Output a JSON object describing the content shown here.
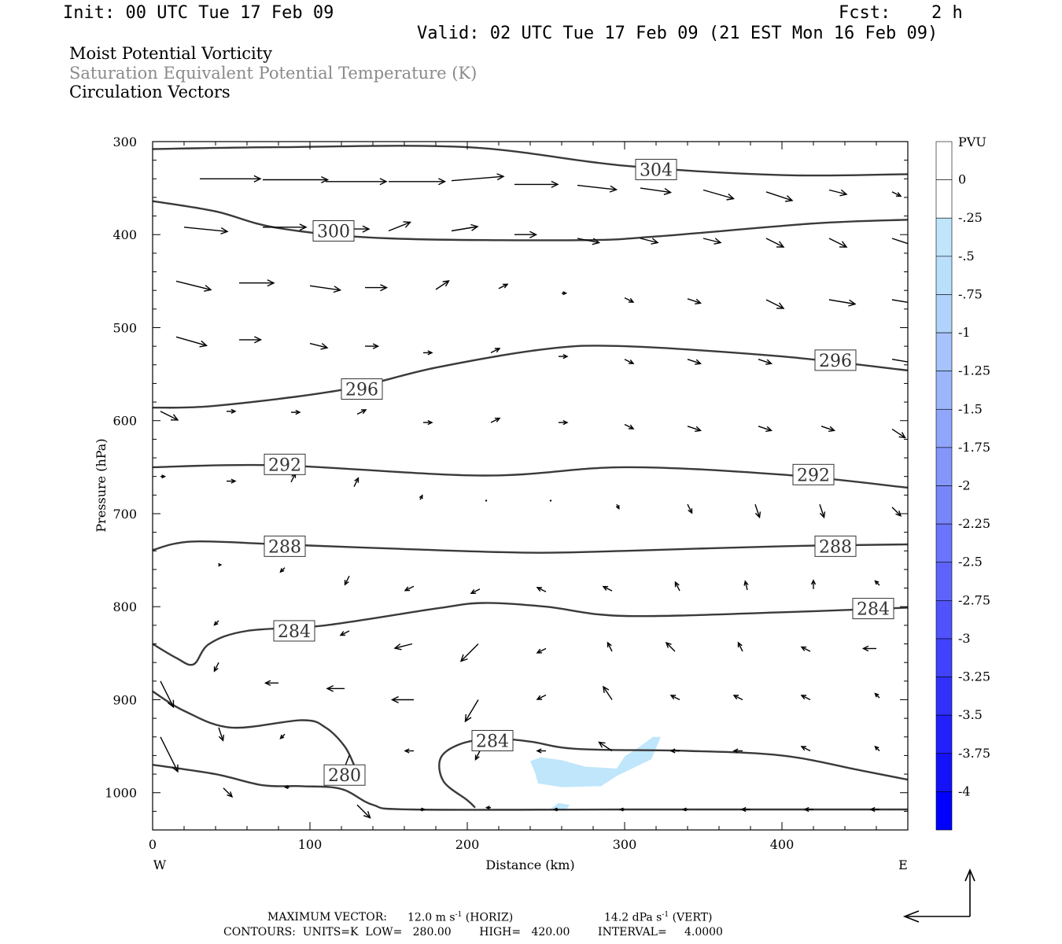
{
  "header": {
    "init": "Init: 00 UTC Tue 17 Feb 09",
    "fcst_label": "Fcst:",
    "fcst_value": "2 h",
    "valid": "Valid: 02 UTC Tue 17 Feb 09 (21 EST Mon 16 Feb 09)",
    "fields": [
      "Moist Potential Vorticity",
      "Saturation Equivalent Potential Temperature (K)",
      "Circulation Vectors"
    ]
  },
  "colors": {
    "contour": "#3a3a3a",
    "vector": "#000000",
    "pv_fill": "#bfe6fb"
  },
  "chart_data": {
    "type": "cross-section",
    "xlabel": "Distance (km)",
    "ylabel": "Pressure (hPa)",
    "xlim": [
      0,
      480
    ],
    "ylim": [
      1040,
      300
    ],
    "x_ticks": [
      0,
      100,
      200,
      300,
      400
    ],
    "y_ticks": [
      300,
      400,
      500,
      600,
      700,
      800,
      900,
      1000
    ],
    "left_end_label": "W",
    "right_end_label": "E",
    "contour_labels": [
      {
        "value": "304",
        "x": 320,
        "p": 330
      },
      {
        "value": "300",
        "x": 115,
        "p": 396
      },
      {
        "value": "296",
        "x": 133,
        "p": 566
      },
      {
        "value": "296",
        "x": 434,
        "p": 535
      },
      {
        "value": "292",
        "x": 84,
        "p": 647
      },
      {
        "value": "292",
        "x": 420,
        "p": 658
      },
      {
        "value": "288",
        "x": 84,
        "p": 735
      },
      {
        "value": "288",
        "x": 434,
        "p": 735
      },
      {
        "value": "284",
        "x": 90,
        "p": 826
      },
      {
        "value": "284",
        "x": 458,
        "p": 802
      },
      {
        "value": "284",
        "x": 216,
        "p": 944
      },
      {
        "value": "280",
        "x": 122,
        "p": 981
      }
    ],
    "contours": [
      {
        "value": 304,
        "points": [
          [
            0,
            308
          ],
          [
            80,
            306
          ],
          [
            200,
            306
          ],
          [
            300,
            326
          ],
          [
            400,
            336
          ],
          [
            480,
            335
          ]
        ]
      },
      {
        "value": 300,
        "points": [
          [
            0,
            364
          ],
          [
            40,
            375
          ],
          [
            80,
            393
          ],
          [
            150,
            404
          ],
          [
            270,
            406
          ],
          [
            320,
            402
          ],
          [
            420,
            388
          ],
          [
            480,
            384
          ]
        ]
      },
      {
        "value": 296,
        "points": [
          [
            0,
            586
          ],
          [
            40,
            584
          ],
          [
            120,
            567
          ],
          [
            180,
            543
          ],
          [
            250,
            523
          ],
          [
            300,
            520
          ],
          [
            400,
            531
          ],
          [
            480,
            546
          ]
        ]
      },
      {
        "value": 292,
        "points": [
          [
            0,
            650
          ],
          [
            80,
            648
          ],
          [
            210,
            659
          ],
          [
            300,
            650
          ],
          [
            400,
            658
          ],
          [
            480,
            672
          ]
        ]
      },
      {
        "value": 288,
        "points": [
          [
            0,
            739
          ],
          [
            25,
            730
          ],
          [
            80,
            733
          ],
          [
            160,
            738
          ],
          [
            240,
            742
          ],
          [
            300,
            740
          ],
          [
            400,
            735
          ],
          [
            480,
            733
          ]
        ]
      },
      {
        "value": 284,
        "points": [
          [
            0,
            840
          ],
          [
            15,
            855
          ],
          [
            26,
            862
          ],
          [
            36,
            840
          ],
          [
            60,
            826
          ],
          [
            110,
            820
          ],
          [
            180,
            802
          ],
          [
            210,
            796
          ],
          [
            250,
            800
          ],
          [
            300,
            810
          ],
          [
            400,
            806
          ],
          [
            480,
            801
          ]
        ]
      },
      {
        "value": 284,
        "points": [
          [
            205,
            1016
          ],
          [
            200,
            1008
          ],
          [
            185,
            988
          ],
          [
            183,
            963
          ],
          [
            195,
            948
          ],
          [
            216,
            942
          ],
          [
            240,
            945
          ],
          [
            270,
            953
          ],
          [
            340,
            955
          ],
          [
            400,
            960
          ],
          [
            450,
            976
          ],
          [
            480,
            986
          ]
        ]
      },
      {
        "value": 280,
        "points": [
          [
            0,
            891
          ],
          [
            20,
            912
          ],
          [
            50,
            930
          ],
          [
            95,
            922
          ],
          [
            110,
            930
          ],
          [
            122,
            950
          ],
          [
            128,
            970
          ]
        ]
      },
      {
        "value": 280,
        "points": [
          [
            0,
            970
          ],
          [
            40,
            980
          ],
          [
            70,
            992
          ],
          [
            95,
            993
          ],
          [
            120,
            996
          ],
          [
            140,
            1013
          ],
          [
            165,
            1018
          ],
          [
            300,
            1018
          ],
          [
            480,
            1018
          ]
        ]
      }
    ],
    "pv_regions": [
      {
        "level": "-0.25",
        "points": [
          [
            240,
            966
          ],
          [
            247,
            962
          ],
          [
            260,
            965
          ],
          [
            275,
            972
          ],
          [
            295,
            974
          ],
          [
            300,
            961
          ],
          [
            310,
            950
          ],
          [
            318,
            940
          ],
          [
            323,
            940
          ],
          [
            317,
            964
          ],
          [
            295,
            982
          ],
          [
            285,
            993
          ],
          [
            260,
            994
          ],
          [
            245,
            990
          ],
          [
            243,
            978
          ]
        ]
      },
      {
        "level": "-0.25",
        "points": [
          [
            253,
            1017
          ],
          [
            258,
            1011
          ],
          [
            265,
            1013
          ],
          [
            263,
            1018
          ]
        ]
      }
    ],
    "vectors": [
      {
        "x": 30,
        "p": 340,
        "u": 14,
        "w": 0
      },
      {
        "x": 70,
        "p": 341,
        "u": 15,
        "w": 0
      },
      {
        "x": 110,
        "p": 343,
        "u": 14,
        "w": 0
      },
      {
        "x": 150,
        "p": 343,
        "u": 13,
        "w": 0
      },
      {
        "x": 190,
        "p": 342,
        "u": 12,
        "w": -1
      },
      {
        "x": 230,
        "p": 346,
        "u": 10,
        "w": 0
      },
      {
        "x": 270,
        "p": 347,
        "u": 9,
        "w": 1
      },
      {
        "x": 310,
        "p": 350,
        "u": 7,
        "w": 1
      },
      {
        "x": 350,
        "p": 352,
        "u": 7,
        "w": 2
      },
      {
        "x": 390,
        "p": 354,
        "u": 6,
        "w": 2
      },
      {
        "x": 430,
        "p": 352,
        "u": 4,
        "w": 1
      },
      {
        "x": 470,
        "p": 354,
        "u": 2,
        "w": 1
      },
      {
        "x": 20,
        "p": 392,
        "u": 10,
        "w": 1
      },
      {
        "x": 70,
        "p": 392,
        "u": 10,
        "w": 0
      },
      {
        "x": 110,
        "p": 394,
        "u": 10,
        "w": 0
      },
      {
        "x": 150,
        "p": 396,
        "u": 5,
        "w": -2
      },
      {
        "x": 190,
        "p": 396,
        "u": 6,
        "w": -1
      },
      {
        "x": 230,
        "p": 400,
        "u": 5,
        "w": 0
      },
      {
        "x": 270,
        "p": 404,
        "u": 5,
        "w": 1
      },
      {
        "x": 310,
        "p": 404,
        "u": 4,
        "w": 1
      },
      {
        "x": 350,
        "p": 404,
        "u": 4,
        "w": 1
      },
      {
        "x": 390,
        "p": 404,
        "u": 4,
        "w": 2
      },
      {
        "x": 430,
        "p": 404,
        "u": 4,
        "w": 2
      },
      {
        "x": 470,
        "p": 404,
        "u": 6,
        "w": 2
      },
      {
        "x": 15,
        "p": 450,
        "u": 8,
        "w": 2
      },
      {
        "x": 55,
        "p": 452,
        "u": 8,
        "w": 0
      },
      {
        "x": 100,
        "p": 455,
        "u": 7,
        "w": 1
      },
      {
        "x": 135,
        "p": 457,
        "u": 5,
        "w": 0
      },
      {
        "x": 180,
        "p": 459,
        "u": 3,
        "w": -2
      },
      {
        "x": 220,
        "p": 458,
        "u": 2,
        "w": -1
      },
      {
        "x": 260,
        "p": 463,
        "u": 1,
        "w": 0
      },
      {
        "x": 300,
        "p": 468,
        "u": 2,
        "w": 1
      },
      {
        "x": 340,
        "p": 469,
        "u": 3,
        "w": 1
      },
      {
        "x": 390,
        "p": 470,
        "u": 4,
        "w": 2
      },
      {
        "x": 430,
        "p": 470,
        "u": 6,
        "w": 1
      },
      {
        "x": 470,
        "p": 470,
        "u": 6,
        "w": 1
      },
      {
        "x": 15,
        "p": 510,
        "u": 7,
        "w": 2
      },
      {
        "x": 55,
        "p": 513,
        "u": 5,
        "w": 0
      },
      {
        "x": 100,
        "p": 517,
        "u": 4,
        "w": 1
      },
      {
        "x": 135,
        "p": 520,
        "u": 3,
        "w": 0
      },
      {
        "x": 172,
        "p": 527,
        "u": 2,
        "w": 0
      },
      {
        "x": 215,
        "p": 527,
        "u": 2,
        "w": -1
      },
      {
        "x": 258,
        "p": 531,
        "u": 2,
        "w": 0
      },
      {
        "x": 300,
        "p": 534,
        "u": 2,
        "w": 1
      },
      {
        "x": 340,
        "p": 534,
        "u": 3,
        "w": 1
      },
      {
        "x": 385,
        "p": 534,
        "u": 3,
        "w": 1
      },
      {
        "x": 425,
        "p": 536,
        "u": 4,
        "w": 1
      },
      {
        "x": 470,
        "p": 534,
        "u": 6,
        "w": 1
      },
      {
        "x": 5,
        "p": 590,
        "u": 4,
        "w": 2
      },
      {
        "x": 47,
        "p": 590,
        "u": 2,
        "w": 0
      },
      {
        "x": 88,
        "p": 591,
        "u": 2,
        "w": 0
      },
      {
        "x": 130,
        "p": 593,
        "u": 2,
        "w": -1
      },
      {
        "x": 172,
        "p": 602,
        "u": 2,
        "w": 0
      },
      {
        "x": 215,
        "p": 602,
        "u": 2,
        "w": -1
      },
      {
        "x": 258,
        "p": 602,
        "u": 2,
        "w": 0
      },
      {
        "x": 300,
        "p": 604,
        "u": 2,
        "w": 1
      },
      {
        "x": 340,
        "p": 606,
        "u": 3,
        "w": 1
      },
      {
        "x": 385,
        "p": 606,
        "u": 3,
        "w": 1
      },
      {
        "x": 425,
        "p": 606,
        "u": 3,
        "w": 1
      },
      {
        "x": 470,
        "p": 609,
        "u": 3,
        "w": 2
      },
      {
        "x": 5,
        "p": 660,
        "u": 1,
        "w": 0
      },
      {
        "x": 47,
        "p": 665,
        "u": 2,
        "w": 0
      },
      {
        "x": 88,
        "p": 666,
        "u": 1,
        "w": -2
      },
      {
        "x": 128,
        "p": 671,
        "u": 1,
        "w": -2
      },
      {
        "x": 170,
        "p": 685,
        "u": 0.5,
        "w": -1
      },
      {
        "x": 212,
        "p": 686,
        "u": 0.3,
        "w": 0
      },
      {
        "x": 253,
        "p": 686,
        "u": 0.3,
        "w": 0
      },
      {
        "x": 295,
        "p": 690,
        "u": 0.5,
        "w": 1
      },
      {
        "x": 340,
        "p": 690,
        "u": 1,
        "w": 2
      },
      {
        "x": 383,
        "p": 690,
        "u": 1,
        "w": 3
      },
      {
        "x": 424,
        "p": 690,
        "u": 1,
        "w": 3
      },
      {
        "x": 470,
        "p": 693,
        "u": 2,
        "w": 2
      },
      {
        "x": 42,
        "p": 755,
        "u": 0.5,
        "w": 0
      },
      {
        "x": 84,
        "p": 758,
        "u": -1,
        "w": 1
      },
      {
        "x": 125,
        "p": 767,
        "u": -1,
        "w": 2
      },
      {
        "x": 166,
        "p": 778,
        "u": -2,
        "w": 1
      },
      {
        "x": 208,
        "p": 781,
        "u": -2,
        "w": 1
      },
      {
        "x": 250,
        "p": 784,
        "u": -2,
        "w": -1
      },
      {
        "x": 292,
        "p": 783,
        "u": -2,
        "w": -1
      },
      {
        "x": 335,
        "p": 783,
        "u": -1,
        "w": -2
      },
      {
        "x": 378,
        "p": 782,
        "u": -0.5,
        "w": -2
      },
      {
        "x": 420,
        "p": 781,
        "u": 0,
        "w": -2
      },
      {
        "x": 462,
        "p": 777,
        "u": -1,
        "w": -1
      },
      {
        "x": 42,
        "p": 815,
        "u": -1,
        "w": 1
      },
      {
        "x": 125,
        "p": 826,
        "u": -2,
        "w": 1
      },
      {
        "x": 165,
        "p": 840,
        "u": -4,
        "w": 1
      },
      {
        "x": 207,
        "p": 840,
        "u": -4,
        "w": 4
      },
      {
        "x": 250,
        "p": 845,
        "u": -2,
        "w": 1
      },
      {
        "x": 292,
        "p": 848,
        "u": -1,
        "w": -2
      },
      {
        "x": 332,
        "p": 848,
        "u": -2,
        "w": -2
      },
      {
        "x": 375,
        "p": 848,
        "u": -1,
        "w": -2
      },
      {
        "x": 418,
        "p": 848,
        "u": -2,
        "w": -1
      },
      {
        "x": 460,
        "p": 845,
        "u": -3,
        "w": 0
      },
      {
        "x": 42,
        "p": 860,
        "u": -1,
        "w": 2
      },
      {
        "x": 80,
        "p": 882,
        "u": -3,
        "w": 0
      },
      {
        "x": 122,
        "p": 888,
        "u": -4,
        "w": 0
      },
      {
        "x": 166,
        "p": 900,
        "u": -5,
        "w": 0
      },
      {
        "x": 207,
        "p": 900,
        "u": -3,
        "w": 5
      },
      {
        "x": 250,
        "p": 895,
        "u": -2,
        "w": 1
      },
      {
        "x": 292,
        "p": 900,
        "u": -2,
        "w": -3
      },
      {
        "x": 335,
        "p": 900,
        "u": -2,
        "w": -1
      },
      {
        "x": 375,
        "p": 900,
        "u": -2,
        "w": -1
      },
      {
        "x": 418,
        "p": 900,
        "u": -2,
        "w": -1
      },
      {
        "x": 462,
        "p": 898,
        "u": -1,
        "w": -1
      },
      {
        "x": 5,
        "p": 880,
        "u": 3,
        "w": 6
      },
      {
        "x": 5,
        "p": 940,
        "u": 4,
        "w": 8
      },
      {
        "x": 42,
        "p": 930,
        "u": 1,
        "w": 3
      },
      {
        "x": 84,
        "p": 937,
        "u": -1,
        "w": 1
      },
      {
        "x": 125,
        "p": 960,
        "u": -2,
        "w": 5
      },
      {
        "x": 166,
        "p": 955,
        "u": -2,
        "w": 0
      },
      {
        "x": 208,
        "p": 955,
        "u": -1,
        "w": 2
      },
      {
        "x": 250,
        "p": 955,
        "u": -2,
        "w": 0
      },
      {
        "x": 292,
        "p": 955,
        "u": -3,
        "w": -2
      },
      {
        "x": 335,
        "p": 955,
        "u": -2,
        "w": 0
      },
      {
        "x": 375,
        "p": 955,
        "u": -2,
        "w": 0
      },
      {
        "x": 418,
        "p": 955,
        "u": -2,
        "w": -1
      },
      {
        "x": 462,
        "p": 955,
        "u": -1,
        "w": -1
      },
      {
        "x": 45,
        "p": 995,
        "u": 2,
        "w": 2
      },
      {
        "x": 87,
        "p": 994,
        "u": -1,
        "w": 0
      },
      {
        "x": 130,
        "p": 1013,
        "u": 3,
        "w": 3
      },
      {
        "x": 170,
        "p": 1018,
        "u": 1,
        "w": 0
      },
      {
        "x": 215,
        "p": 1016,
        "u": -1,
        "w": 0
      },
      {
        "x": 258,
        "p": 1018,
        "u": -1,
        "w": 0
      },
      {
        "x": 300,
        "p": 1018,
        "u": -1,
        "w": 0
      },
      {
        "x": 340,
        "p": 1018,
        "u": -1,
        "w": 0
      },
      {
        "x": 380,
        "p": 1018,
        "u": -2,
        "w": 0
      },
      {
        "x": 420,
        "p": 1018,
        "u": -2,
        "w": 0
      },
      {
        "x": 462,
        "p": 1018,
        "u": -2,
        "w": 0
      }
    ],
    "colorbar": {
      "title": "PVU",
      "labels": [
        "0",
        "-.25",
        "-.5",
        "-.75",
        "-1",
        "-1.25",
        "-1.5",
        "-1.75",
        "-2",
        "-2.25",
        "-2.5",
        "-2.75",
        "-3",
        "-3.25",
        "-3.5",
        "-3.75",
        "-4"
      ],
      "colors": [
        "#ffffff",
        "#ffffff",
        "#bfe6fb",
        "#b9e0fb",
        "#b0d3fb",
        "#a6c4fb",
        "#9bb6fb",
        "#8fa6fb",
        "#8496fb",
        "#7886fb",
        "#6b75fb",
        "#5e64fb",
        "#5053fb",
        "#4142fb",
        "#3231fb",
        "#2220fb",
        "#1412fb",
        "#0000ff"
      ]
    }
  },
  "footer": {
    "max_vector_label": "MAXIMUM VECTOR:",
    "horiz_value": "12.0 m s",
    "horiz_suffix": "(HORIZ)",
    "vert_value": "14.2 dPa s",
    "vert_suffix": "(VERT)",
    "exponent": "-1",
    "contours_line": "CONTOURS:  UNITS=K  LOW=   280.00        HIGH=   420.00        INTERVAL=     4.0000"
  }
}
